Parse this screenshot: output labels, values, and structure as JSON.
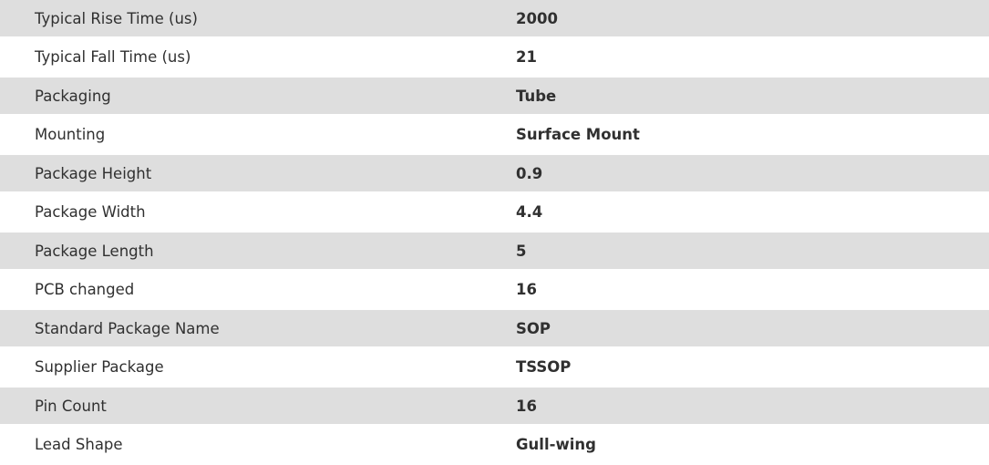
{
  "rows": [
    {
      "label": "Typical Rise Time (us)",
      "value": "2000"
    },
    {
      "label": "Typical Fall Time (us)",
      "value": "21"
    },
    {
      "label": "Packaging",
      "value": "Tube"
    },
    {
      "label": "Mounting",
      "value": "Surface Mount"
    },
    {
      "label": "Package Height",
      "value": "0.9"
    },
    {
      "label": "Package Width",
      "value": "4.4"
    },
    {
      "label": "Package Length",
      "value": "5"
    },
    {
      "label": "PCB changed",
      "value": "16"
    },
    {
      "label": "Standard Package Name",
      "value": "SOP"
    },
    {
      "label": "Supplier Package",
      "value": "TSSOP"
    },
    {
      "label": "Pin Count",
      "value": "16"
    },
    {
      "label": "Lead Shape",
      "value": "Gull-wing"
    }
  ],
  "colors": {
    "stripe": "#dedede",
    "text": "#303030"
  }
}
